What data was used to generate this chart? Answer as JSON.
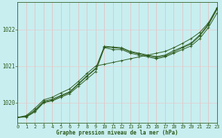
{
  "xlabel": "Graphe pression niveau de la mer (hPa)",
  "background_color": "#c8eef0",
  "grid_color_v": "#e8b8b8",
  "grid_color_h": "#e8c8c8",
  "line_color": "#2d5a1b",
  "xlim": [
    0,
    23
  ],
  "ylim": [
    1019.45,
    1022.75
  ],
  "yticks": [
    1020,
    1021,
    1022
  ],
  "xticks": [
    0,
    1,
    2,
    3,
    4,
    5,
    6,
    7,
    8,
    9,
    10,
    11,
    12,
    13,
    14,
    15,
    16,
    17,
    18,
    19,
    20,
    21,
    22,
    23
  ],
  "series": [
    [
      1019.6,
      1019.61,
      1019.75,
      1020.0,
      1020.05,
      1020.15,
      1020.25,
      1020.45,
      1020.65,
      1020.85,
      1021.5,
      1021.45,
      1021.45,
      1021.35,
      1021.3,
      1021.25,
      1021.2,
      1021.25,
      1021.35,
      1021.45,
      1021.55,
      1021.75,
      1022.05,
      1022.45
    ],
    [
      1019.6,
      1019.62,
      1019.78,
      1020.02,
      1020.07,
      1020.18,
      1020.28,
      1020.5,
      1020.72,
      1020.92,
      1021.52,
      1021.5,
      1021.48,
      1021.38,
      1021.33,
      1021.28,
      1021.23,
      1021.28,
      1021.38,
      1021.5,
      1021.6,
      1021.82,
      1022.12,
      1022.55
    ],
    [
      1019.6,
      1019.63,
      1019.8,
      1020.04,
      1020.1,
      1020.2,
      1020.3,
      1020.52,
      1020.74,
      1020.94,
      1021.54,
      1021.52,
      1021.5,
      1021.4,
      1021.35,
      1021.3,
      1021.26,
      1021.3,
      1021.42,
      1021.52,
      1021.63,
      1021.85,
      1022.15,
      1022.58
    ],
    [
      1019.6,
      1019.65,
      1019.85,
      1020.08,
      1020.15,
      1020.27,
      1020.38,
      1020.58,
      1020.8,
      1021.0,
      1021.05,
      1021.1,
      1021.15,
      1021.2,
      1021.25,
      1021.3,
      1021.35,
      1021.4,
      1021.5,
      1021.62,
      1021.75,
      1021.92,
      1022.18,
      1022.6
    ]
  ]
}
